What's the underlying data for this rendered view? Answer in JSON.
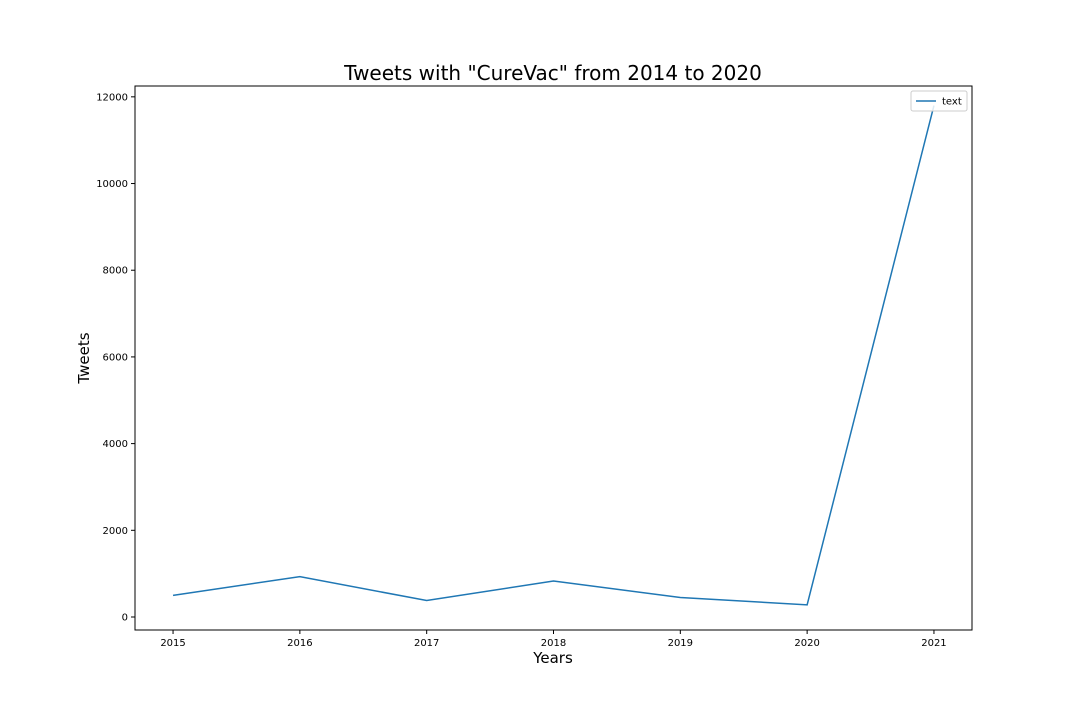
{
  "chart_data": {
    "type": "line",
    "title": "Tweets with \"CureVac\" from 2014 to 2020",
    "xlabel": "Years",
    "ylabel": "Tweets",
    "x": [
      2015,
      2016,
      2017,
      2018,
      2019,
      2020,
      2021
    ],
    "x_tick_labels": [
      "2015",
      "2016",
      "2017",
      "2018",
      "2019",
      "2020",
      "2021"
    ],
    "y_ticks": [
      0,
      2000,
      4000,
      6000,
      8000,
      10000,
      12000
    ],
    "y_tick_labels": [
      "0",
      "2000",
      "4000",
      "6000",
      "8000",
      "10000",
      "12000"
    ],
    "xlim": [
      2014.7,
      2021.3
    ],
    "ylim": [
      -300,
      12250
    ],
    "series": [
      {
        "name": "text",
        "color": "#1f77b4",
        "values": [
          500,
          930,
          380,
          830,
          450,
          280,
          11800
        ]
      }
    ],
    "legend": {
      "position": "top-right"
    },
    "grid": false
  }
}
